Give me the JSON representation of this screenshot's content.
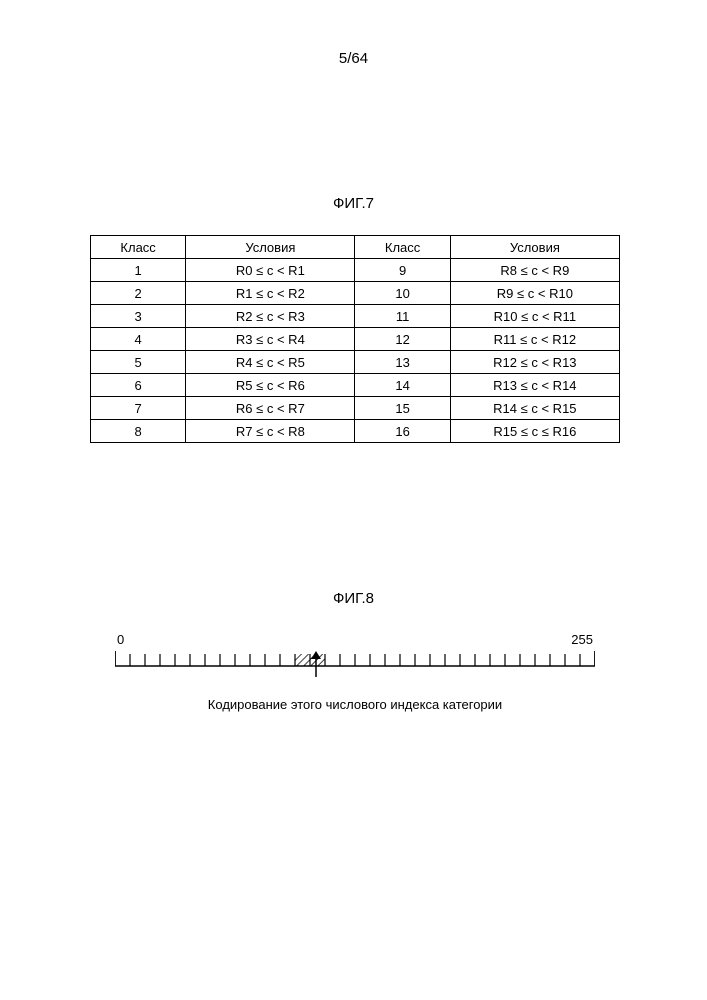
{
  "page_number": "5/64",
  "fig7": {
    "label": "ФИГ.7",
    "headers": [
      "Класс",
      "Условия",
      "Класс",
      "Условия"
    ],
    "rows": [
      [
        "1",
        "R0 ≤ c < R1",
        "9",
        "R8 ≤ c < R9"
      ],
      [
        "2",
        "R1 ≤ c < R2",
        "10",
        "R9 ≤ c < R10"
      ],
      [
        "3",
        "R2 ≤ c < R3",
        "11",
        "R10 ≤ c < R11"
      ],
      [
        "4",
        "R3 ≤ c < R4",
        "12",
        "R11 ≤ c < R12"
      ],
      [
        "5",
        "R4 ≤ c < R5",
        "13",
        "R12 ≤ c < R13"
      ],
      [
        "6",
        "R5 ≤ c < R6",
        "14",
        "R13 ≤ c < R14"
      ],
      [
        "7",
        "R6 ≤ c < R7",
        "15",
        "R14 ≤ c < R15"
      ],
      [
        "8",
        "R7 ≤ c < R8",
        "16",
        "R15 ≤ c ≤ R16"
      ]
    ]
  },
  "fig8": {
    "label": "ФИГ.8",
    "scale_min": "0",
    "scale_max": "255",
    "tick_count": 33,
    "hatched_start_tick": 12,
    "hatched_end_tick": 14,
    "caption": "Кодирование этого числового индекса категории",
    "color_line": "#000000",
    "color_hatch": "#000000"
  }
}
